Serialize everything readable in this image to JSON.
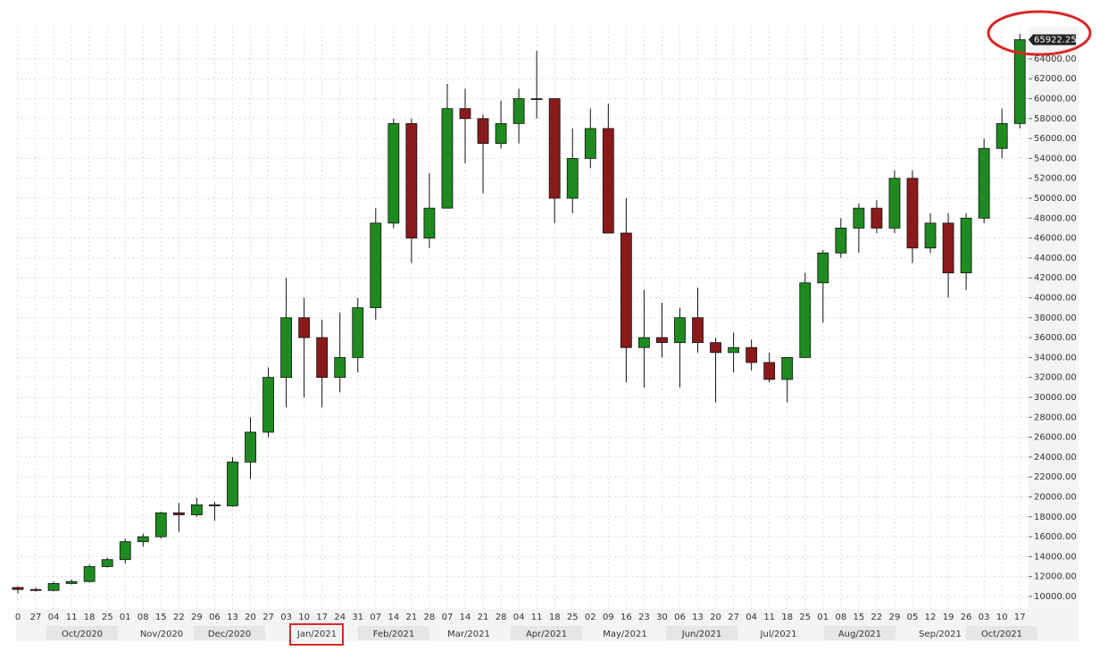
{
  "chart_data": {
    "type": "candlestick",
    "categories": [
      "0",
      "27",
      "04",
      "11",
      "18",
      "25",
      "01",
      "08",
      "15",
      "22",
      "29",
      "06",
      "13",
      "20",
      "27",
      "03",
      "10",
      "17",
      "24",
      "31",
      "07",
      "14",
      "21",
      "28",
      "07",
      "14",
      "21",
      "28",
      "04",
      "11",
      "18",
      "25",
      "02",
      "09",
      "16",
      "23",
      "30",
      "06",
      "13",
      "20",
      "27",
      "04",
      "11",
      "18",
      "25",
      "01",
      "08",
      "15",
      "22",
      "29",
      "05",
      "12",
      "19",
      "26",
      "03",
      "10",
      "17"
    ],
    "open": [
      10900,
      10700,
      10600,
      11300,
      11500,
      13000,
      13700,
      15500,
      16000,
      18400,
      18200,
      19200,
      19100,
      23500,
      26500,
      32000,
      38000,
      36000,
      32000,
      34000,
      39000,
      47500,
      57500,
      46000,
      49000,
      59000,
      58000,
      55500,
      57500,
      60000,
      60000,
      50000,
      54000,
      57000,
      46500,
      35000,
      36000,
      35500,
      38000,
      35500,
      34500,
      35000,
      33500,
      31800,
      34000,
      41500,
      44500,
      47000,
      49000,
      47000,
      52000,
      45000,
      47500,
      42500,
      48000,
      55000,
      57500
    ],
    "high": [
      11000,
      10900,
      11500,
      11700,
      13200,
      13900,
      15800,
      16300,
      18500,
      19400,
      19900,
      19500,
      24000,
      28000,
      33000,
      42000,
      40000,
      37800,
      38500,
      40000,
      49000,
      58000,
      58000,
      52500,
      61500,
      61000,
      58400,
      59800,
      61000,
      64800,
      60000,
      57000,
      59000,
      59500,
      50000,
      40800,
      39500,
      39000,
      41000,
      36000,
      36500,
      35800,
      34500,
      34000,
      42500,
      44800,
      48000,
      49500,
      49800,
      52800,
      52800,
      48500,
      48500,
      48500,
      56000,
      59000,
      66500
    ],
    "low": [
      10300,
      10500,
      10500,
      11200,
      11400,
      12900,
      13300,
      15000,
      15800,
      16500,
      18000,
      17600,
      19000,
      21800,
      26000,
      29000,
      30000,
      29000,
      30500,
      32500,
      37800,
      47000,
      43500,
      45000,
      49000,
      53500,
      50500,
      55000,
      55500,
      58000,
      47500,
      48500,
      53000,
      46500,
      31500,
      31000,
      34000,
      31000,
      34500,
      29500,
      32500,
      32700,
      31500,
      29500,
      34000,
      37500,
      44000,
      44500,
      46500,
      46500,
      43500,
      44500,
      40000,
      40800,
      47500,
      54000,
      57000
    ],
    "close": [
      10700,
      10600,
      11300,
      11500,
      13000,
      13700,
      15500,
      16000,
      18400,
      18200,
      19200,
      19100,
      23500,
      26500,
      32000,
      38000,
      36000,
      32000,
      34000,
      39000,
      47500,
      57500,
      46000,
      49000,
      59000,
      58000,
      55500,
      57500,
      60000,
      60000,
      50000,
      54000,
      57000,
      46500,
      35000,
      36000,
      35500,
      38000,
      35500,
      34500,
      35000,
      33500,
      31800,
      34000,
      41500,
      44500,
      47000,
      49000,
      47000,
      52000,
      45000,
      47500,
      42500,
      48000,
      55000,
      57500,
      65922.25
    ],
    "month_labels": [
      "Oct/2020",
      "Nov/2020",
      "Dec/2020",
      "Jan/2021",
      "Feb/2021",
      "Mar/2021",
      "Apr/2021",
      "May/2021",
      "Jun/2021",
      "Jul/2021",
      "Aug/2021",
      "Sep/2021",
      "Oct/2021"
    ],
    "ylim": [
      8740,
      67220
    ],
    "yticks": [
      {
        "value": 10000,
        "label": "10000.00"
      },
      {
        "value": 12000,
        "label": "12000.00"
      },
      {
        "value": 14000,
        "label": "14000.00"
      },
      {
        "value": 16000,
        "label": "16000.00"
      },
      {
        "value": 18000,
        "label": "18000.00"
      },
      {
        "value": 20000,
        "label": "20000.00"
      },
      {
        "value": 22000,
        "label": "22000.00"
      },
      {
        "value": 24000,
        "label": "24000.00"
      },
      {
        "value": 26000,
        "label": "26000.00"
      },
      {
        "value": 28000,
        "label": "28000.00"
      },
      {
        "value": 30000,
        "label": "30000.00"
      },
      {
        "value": 32000,
        "label": "32000.00"
      },
      {
        "value": 34000,
        "label": "34000.00"
      },
      {
        "value": 36000,
        "label": "36000.00"
      },
      {
        "value": 38000,
        "label": "38000.00"
      },
      {
        "value": 40000,
        "label": "40000.00"
      },
      {
        "value": 42000,
        "label": "42000.00"
      },
      {
        "value": 44000,
        "label": "44000.00"
      },
      {
        "value": 46000,
        "label": "46000.00"
      },
      {
        "value": 48000,
        "label": "48000.00"
      },
      {
        "value": 50000,
        "label": "50000.00"
      },
      {
        "value": 52000,
        "label": "52000.00"
      },
      {
        "value": 54000,
        "label": "54000.00"
      },
      {
        "value": 56000,
        "label": "56000.00"
      },
      {
        "value": 58000,
        "label": "58000.00"
      },
      {
        "value": 60000,
        "label": "60000.00"
      },
      {
        "value": 62000,
        "label": "62000.00"
      },
      {
        "value": 64000,
        "label": "64000.00"
      }
    ],
    "grid": true,
    "up_color": "#1f8a1f",
    "down_color": "#8b1a1a"
  }
}
